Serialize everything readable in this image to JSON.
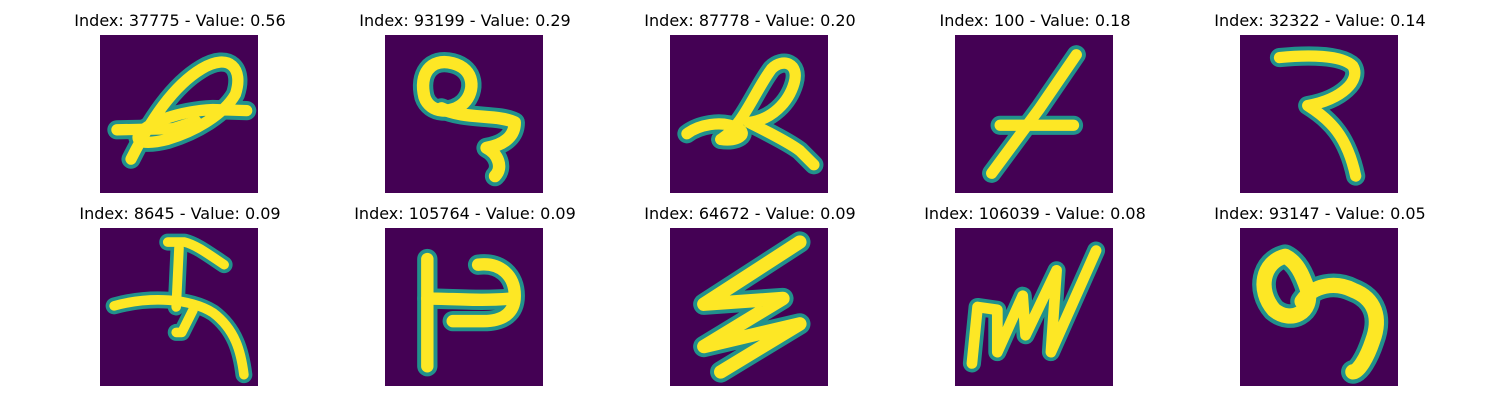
{
  "figure": {
    "colormap": "viridis",
    "colors": {
      "background": "#440154",
      "stroke_mid": "#21918c",
      "stroke_light": "#5ec962",
      "stroke_core": "#fde725"
    },
    "panels": [
      {
        "title": "Index: 37775 - Value: 0.56",
        "index": 37775,
        "value": 0.56
      },
      {
        "title": "Index: 93199 - Value: 0.29",
        "index": 93199,
        "value": 0.29
      },
      {
        "title": "Index: 87778 - Value: 0.20",
        "index": 87778,
        "value": 0.2
      },
      {
        "title": "Index: 100 - Value: 0.18",
        "index": 100,
        "value": 0.18
      },
      {
        "title": "Index: 32322 - Value: 0.14",
        "index": 32322,
        "value": 0.14
      },
      {
        "title": "Index: 8645 - Value: 0.09",
        "index": 8645,
        "value": 0.09
      },
      {
        "title": "Index: 105764 - Value: 0.09",
        "index": 105764,
        "value": 0.09
      },
      {
        "title": "Index: 64672 - Value: 0.09",
        "index": 64672,
        "value": 0.09
      },
      {
        "title": "Index: 106039 - Value: 0.08",
        "index": 106039,
        "value": 0.08
      },
      {
        "title": "Index: 93147 - Value: 0.05",
        "index": 93147,
        "value": 0.05
      }
    ]
  }
}
